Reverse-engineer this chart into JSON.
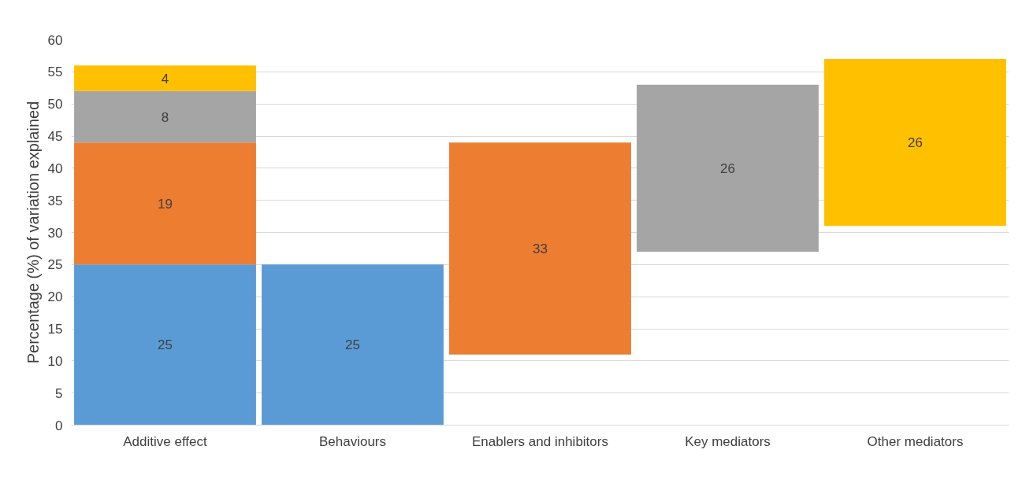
{
  "chart_data": {
    "type": "bar",
    "ylabel": "Percentage (%) of variation explained",
    "categories": [
      "Additive effect",
      "Behaviours",
      "Enablers and inhibitors",
      "Key mediators",
      "Other mediators"
    ],
    "series": [
      {
        "color": "#5b9bd5",
        "values": [
          25,
          25,
          null,
          null,
          null
        ],
        "base": [
          0,
          0,
          null,
          null,
          null
        ]
      },
      {
        "color": "#ed7d31",
        "values": [
          19,
          null,
          33,
          null,
          null
        ],
        "base": [
          25,
          null,
          11,
          null,
          null
        ]
      },
      {
        "color": "#a5a5a5",
        "values": [
          8,
          null,
          null,
          26,
          null
        ],
        "base": [
          44,
          null,
          null,
          27,
          null
        ]
      },
      {
        "color": "#ffc000",
        "values": [
          4,
          null,
          null,
          null,
          26
        ],
        "base": [
          52,
          null,
          null,
          null,
          31
        ]
      }
    ],
    "ylim": [
      0,
      60
    ],
    "yticks": [
      0,
      5,
      10,
      15,
      20,
      25,
      30,
      35,
      40,
      45,
      50,
      55,
      60
    ],
    "grid": "y",
    "data_labels": true
  }
}
